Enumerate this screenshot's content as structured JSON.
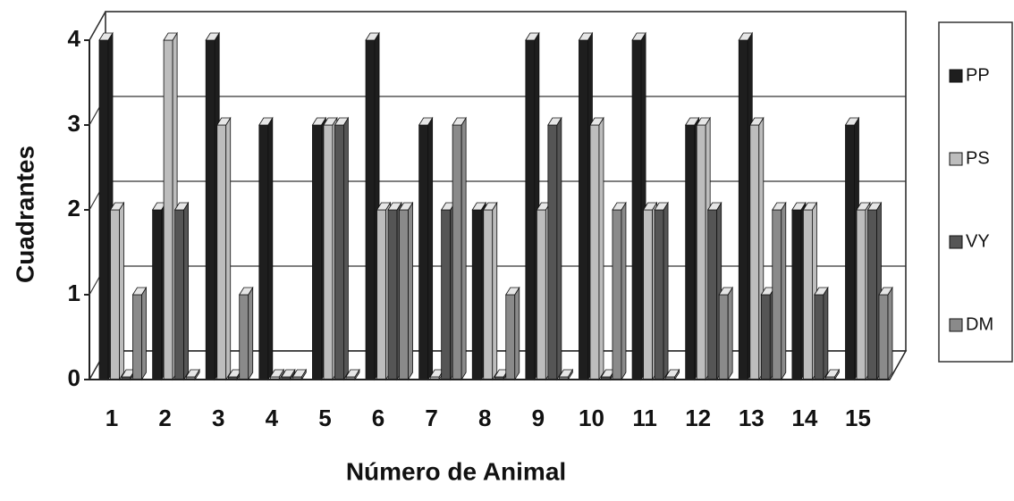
{
  "chart_data": {
    "type": "bar",
    "x_label": "Número de Animal",
    "y_label": "Cuadrantes",
    "categories": [
      "1",
      "2",
      "3",
      "4",
      "5",
      "6",
      "7",
      "8",
      "9",
      "10",
      "11",
      "12",
      "13",
      "14",
      "15"
    ],
    "series": [
      {
        "name": "PP",
        "color": "#1e1e1e",
        "values": [
          4,
          2,
          4,
          3,
          3,
          4,
          3,
          2,
          4,
          4,
          4,
          3,
          4,
          2,
          3
        ]
      },
      {
        "name": "PS",
        "color": "#bdbdbd",
        "values": [
          2,
          4,
          3,
          0,
          3,
          2,
          0,
          2,
          2,
          3,
          2,
          3,
          3,
          2,
          2
        ]
      },
      {
        "name": "VY",
        "color": "#555555",
        "values": [
          0,
          2,
          0,
          0,
          3,
          2,
          2,
          0,
          3,
          0,
          2,
          2,
          1,
          1,
          2
        ]
      },
      {
        "name": "DM",
        "color": "#8a8a8a",
        "values": [
          1,
          0,
          1,
          0,
          0,
          2,
          3,
          1,
          0,
          2,
          0,
          1,
          2,
          0,
          1
        ]
      }
    ],
    "ylim": [
      0,
      4
    ],
    "yticks": [
      0,
      1,
      2,
      3,
      4
    ],
    "grid": true,
    "legend": "right"
  }
}
